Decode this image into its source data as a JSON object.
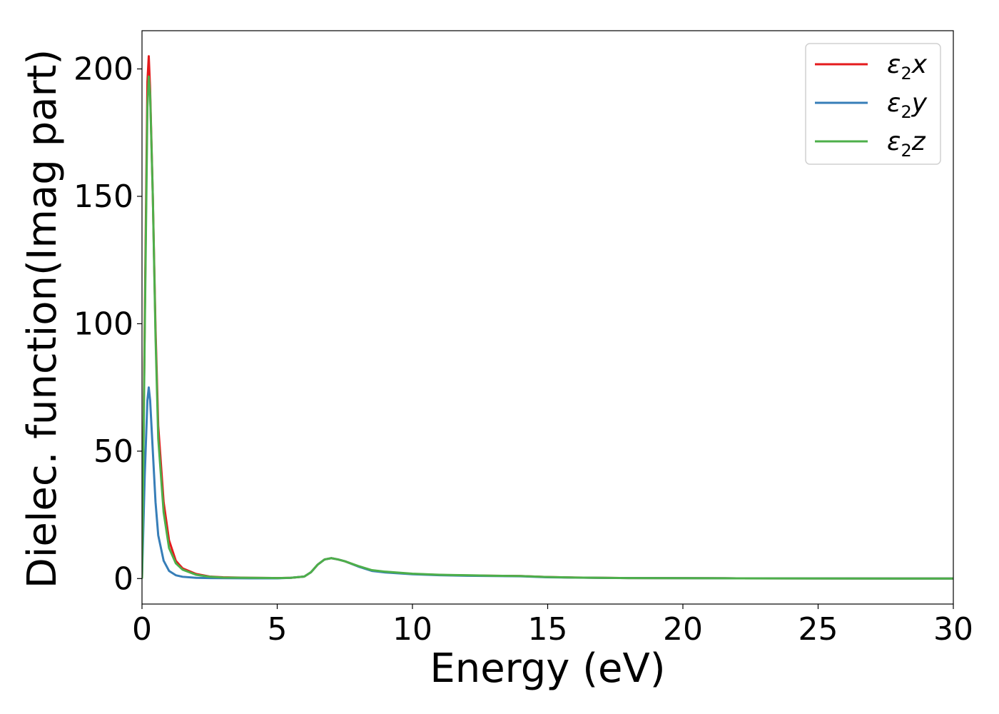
{
  "chart_data": {
    "type": "line",
    "xlabel": "Energy (eV)",
    "ylabel": "Dielec. function(Imag part)",
    "xlim": [
      0,
      30
    ],
    "ylim": [
      -10,
      215
    ],
    "xticks": [
      "0",
      "5",
      "10",
      "15",
      "20",
      "25",
      "30"
    ],
    "yticks": [
      "0",
      "50",
      "100",
      "150",
      "200"
    ],
    "grid": false,
    "legend_position": "top-right",
    "x": [
      0,
      0.1,
      0.2,
      0.25,
      0.3,
      0.4,
      0.5,
      0.6,
      0.8,
      1.0,
      1.25,
      1.5,
      2.0,
      2.5,
      3.0,
      4.0,
      5.0,
      5.5,
      6.0,
      6.25,
      6.5,
      6.75,
      7.0,
      7.25,
      7.5,
      8.0,
      8.5,
      9.0,
      10.0,
      11.0,
      12.0,
      13.0,
      14.0,
      15.0,
      16.0,
      17.0,
      18.0,
      20.0,
      22.0,
      25.0,
      28.0,
      30.0
    ],
    "series": [
      {
        "name_prefix": "ε",
        "name_sub": "2",
        "name_suffix": "x",
        "color": "#e41a1c",
        "values": [
          0,
          100,
          195,
          205,
          192,
          150,
          98,
          60,
          30,
          15,
          7,
          4,
          1.8,
          0.8,
          0.5,
          0.3,
          0.2,
          0.3,
          0.8,
          2.5,
          5.5,
          7.5,
          8,
          7.5,
          6.8,
          4.8,
          3.2,
          2.6,
          1.8,
          1.4,
          1.2,
          1.1,
          1.0,
          0.6,
          0.4,
          0.3,
          0.2,
          0.15,
          0.1,
          0.05,
          0.03,
          0.02
        ]
      },
      {
        "name_prefix": "ε",
        "name_sub": "2",
        "name_suffix": "y",
        "color": "#377eb8",
        "values": [
          0,
          40,
          70,
          75,
          70,
          50,
          30,
          17,
          7,
          3,
          1.3,
          0.7,
          0.3,
          0.2,
          0.15,
          0.1,
          0.1,
          0.3,
          0.8,
          2.5,
          5.5,
          7.5,
          8,
          7.5,
          6.8,
          4.7,
          3.0,
          2.4,
          1.7,
          1.3,
          1.1,
          1.0,
          0.9,
          0.5,
          0.35,
          0.25,
          0.2,
          0.15,
          0.1,
          0.05,
          0.03,
          0.02
        ]
      },
      {
        "name_prefix": "ε",
        "name_sub": "2",
        "name_suffix": "z",
        "color": "#4daf4a",
        "values": [
          0,
          95,
          185,
          197,
          190,
          150,
          95,
          55,
          26,
          12,
          6,
          3.5,
          1.5,
          0.7,
          0.4,
          0.3,
          0.2,
          0.3,
          0.8,
          2.5,
          5.5,
          7.5,
          8,
          7.5,
          6.8,
          4.9,
          3.3,
          2.7,
          1.9,
          1.5,
          1.3,
          1.1,
          1.0,
          0.6,
          0.4,
          0.3,
          0.2,
          0.15,
          0.1,
          0.05,
          0.03,
          0.02
        ]
      }
    ]
  }
}
